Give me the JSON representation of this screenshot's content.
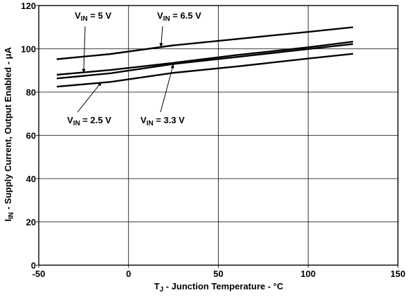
{
  "chart_data": {
    "type": "line",
    "xlabel": {
      "main": "T",
      "sub": "J",
      "rest": " - Junction Temperature - °C"
    },
    "ylabel": {
      "main": "I",
      "sub": "IN",
      "rest": " - Supply Current, Output Enabled - μA"
    },
    "xlim": [
      -50,
      150
    ],
    "ylim": [
      0,
      120
    ],
    "x_ticks": [
      -50,
      0,
      50,
      100,
      150
    ],
    "y_ticks": [
      0,
      20,
      40,
      60,
      80,
      100,
      120
    ],
    "grid": true,
    "series": [
      {
        "name": "6.5 V",
        "x": [
          -40,
          -10,
          25,
          60,
          100,
          125
        ],
        "values": [
          95.2,
          97.6,
          101.6,
          104.5,
          107.8,
          110.0
        ]
      },
      {
        "name": "5 V",
        "x": [
          -40,
          -10,
          25,
          60,
          100,
          125
        ],
        "values": [
          88.0,
          90.2,
          93.5,
          97.1,
          100.7,
          103.3
        ]
      },
      {
        "name": "3.3 V",
        "x": [
          -40,
          -10,
          25,
          60,
          100,
          125
        ],
        "values": [
          86.3,
          88.7,
          93.0,
          96.2,
          99.9,
          102.2
        ]
      },
      {
        "name": "2.5 V",
        "x": [
          -40,
          -10,
          25,
          60,
          100,
          125
        ],
        "values": [
          82.5,
          84.7,
          88.9,
          91.8,
          95.5,
          97.7
        ]
      }
    ],
    "annotations": [
      {
        "series": "5 V",
        "prefix": "V",
        "sub": "IN",
        "text": " = 5 V",
        "anchor_x": -25,
        "anchor_y": 88.8
      },
      {
        "series": "6.5 V",
        "prefix": "V",
        "sub": "IN",
        "text": " = 6.5 V",
        "anchor_x": 18,
        "anchor_y": 100.7
      },
      {
        "series": "2.5 V",
        "prefix": "V",
        "sub": "IN",
        "text": " = 2.5 V",
        "anchor_x": -15,
        "anchor_y": 84.7
      },
      {
        "series": "3.3 V",
        "prefix": "V",
        "sub": "IN",
        "text": " = 3.3 V",
        "anchor_x": 25,
        "anchor_y": 93.0
      }
    ]
  }
}
